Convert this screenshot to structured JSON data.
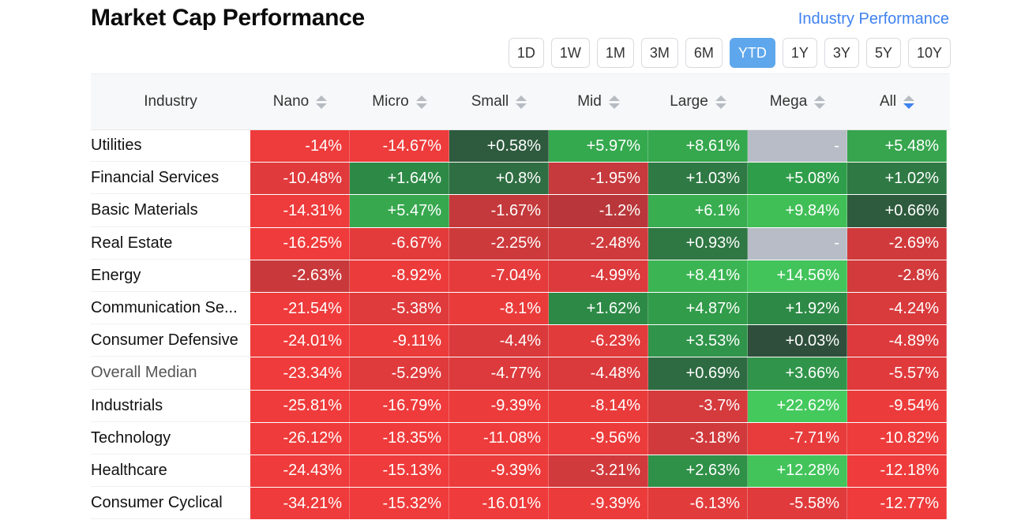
{
  "title": "Market Cap Performance",
  "industry_link": "Industry Performance",
  "periods": [
    "1D",
    "1W",
    "1M",
    "3M",
    "6M",
    "YTD",
    "1Y",
    "3Y",
    "5Y",
    "10Y"
  ],
  "active_period": "YTD",
  "columns": [
    "Industry",
    "Nano",
    "Micro",
    "Small",
    "Mid",
    "Large",
    "Mega",
    "All"
  ],
  "sorted_column": "All",
  "rows": [
    {
      "name": "Utilities",
      "values": [
        "-14%",
        "-14.67%",
        "+0.58%",
        "+5.97%",
        "+8.61%",
        "-",
        "+5.48%"
      ],
      "colors": [
        "#ee3b3b",
        "#ee3b3b",
        "#2e5a3d",
        "#34a94e",
        "#35a74d",
        "#b7bcc6",
        "#36a54d"
      ]
    },
    {
      "name": "Financial Services",
      "values": [
        "-10.48%",
        "+1.64%",
        "+0.8%",
        "-1.95%",
        "+1.03%",
        "+5.08%",
        "+1.02%"
      ],
      "colors": [
        "#e03a3c",
        "#2d8a46",
        "#2f6e42",
        "#c6393c",
        "#2f7a44",
        "#2f9e4a",
        "#2f7a44"
      ]
    },
    {
      "name": "Basic Materials",
      "values": [
        "-14.31%",
        "+5.47%",
        "-1.67%",
        "-1.2%",
        "+6.1%",
        "+9.84%",
        "+0.66%"
      ],
      "colors": [
        "#ee3b3b",
        "#37a84e",
        "#c4393b",
        "#b9373a",
        "#38ae50",
        "#40bf57",
        "#2e5a3d"
      ]
    },
    {
      "name": "Real Estate",
      "values": [
        "-16.25%",
        "-6.67%",
        "-2.25%",
        "-2.48%",
        "+0.93%",
        "-",
        "-2.69%"
      ],
      "colors": [
        "#ef3b3b",
        "#e33b3c",
        "#cd3a3c",
        "#cf3a3c",
        "#2f7743",
        "#b7bcc6",
        "#d13a3c"
      ]
    },
    {
      "name": "Energy",
      "values": [
        "-2.63%",
        "-8.92%",
        "-7.04%",
        "-4.99%",
        "+8.41%",
        "+14.56%",
        "-2.8%"
      ],
      "colors": [
        "#c9393b",
        "#ec3b3b",
        "#e53b3c",
        "#dc3a3c",
        "#3bb553",
        "#42c45b",
        "#d23a3c"
      ]
    },
    {
      "name": "Communication Se...",
      "values": [
        "-21.54%",
        "-5.38%",
        "-8.1%",
        "+1.62%",
        "+4.87%",
        "+1.92%",
        "-4.24%"
      ],
      "colors": [
        "#ef3b3b",
        "#df3a3c",
        "#ea3b3b",
        "#2d8a46",
        "#319c4a",
        "#2d8a46",
        "#d93a3c"
      ]
    },
    {
      "name": "Consumer Defensive",
      "values": [
        "-24.01%",
        "-9.11%",
        "-4.4%",
        "-6.23%",
        "+3.53%",
        "+0.03%",
        "-4.89%"
      ],
      "colors": [
        "#ef3b3b",
        "#ec3b3b",
        "#da3a3c",
        "#e23b3c",
        "#30944a",
        "#2f4f3c",
        "#dc3a3c"
      ]
    },
    {
      "name": "Overall Median",
      "values": [
        "-23.34%",
        "-5.29%",
        "-4.77%",
        "-4.48%",
        "+0.69%",
        "+3.66%",
        "-5.57%"
      ],
      "colors": [
        "#ef3b3b",
        "#df3a3c",
        "#dc3a3c",
        "#da3a3c",
        "#2e6b42",
        "#30954a",
        "#e03a3c"
      ]
    },
    {
      "name": "Industrials",
      "values": [
        "-25.81%",
        "-16.79%",
        "-9.39%",
        "-8.14%",
        "-3.7%",
        "+22.62%",
        "-9.54%"
      ],
      "colors": [
        "#ef3b3b",
        "#ef3b3b",
        "#ec3b3b",
        "#ea3b3b",
        "#d53a3c",
        "#44c95d",
        "#ec3b3b"
      ]
    },
    {
      "name": "Technology",
      "values": [
        "-26.12%",
        "-18.35%",
        "-11.08%",
        "-9.56%",
        "-3.18%",
        "-7.71%",
        "-10.82%"
      ],
      "colors": [
        "#ef3b3b",
        "#ef3b3b",
        "#ee3b3b",
        "#ec3b3b",
        "#d13a3c",
        "#e83b3b",
        "#ee3b3b"
      ]
    },
    {
      "name": "Healthcare",
      "values": [
        "-24.43%",
        "-15.13%",
        "-9.39%",
        "-3.21%",
        "+2.63%",
        "+12.28%",
        "-12.18%"
      ],
      "colors": [
        "#ef3b3b",
        "#ef3b3b",
        "#ec3b3b",
        "#d13a3c",
        "#2f9048",
        "#42c45b",
        "#ef3b3b"
      ]
    },
    {
      "name": "Consumer Cyclical",
      "values": [
        "-34.21%",
        "-15.32%",
        "-16.01%",
        "-9.39%",
        "-6.13%",
        "-5.58%",
        "-12.77%"
      ],
      "colors": [
        "#ef3b3b",
        "#ef3b3b",
        "#ef3b3b",
        "#ec3b3b",
        "#e23b3c",
        "#e03a3c",
        "#ef3b3b"
      ]
    }
  ]
}
